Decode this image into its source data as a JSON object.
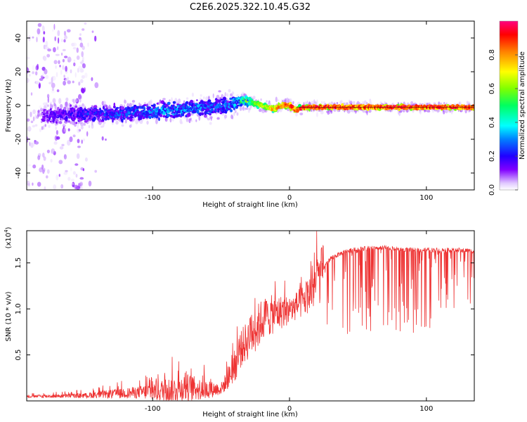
{
  "title": "C2E6.2025.322.10.45.G32",
  "chart_data": [
    {
      "type": "heatmap",
      "name": "spectrogram",
      "xlabel": "Height of straight line (km)",
      "ylabel": "Frequency (Hz)",
      "xlim": [
        -192,
        135
      ],
      "ylim": [
        -50,
        50
      ],
      "x_ticks": [
        -100,
        0,
        100
      ],
      "y_ticks": [
        -40,
        -20,
        0,
        20,
        40
      ],
      "colorbar": {
        "label": "Normalized spectral amplitude",
        "range": [
          0,
          1
        ],
        "ticks": [
          "0.0",
          "0.2",
          "0.4",
          "0.6",
          "0.8"
        ],
        "tick_values": [
          0.0,
          0.2,
          0.4,
          0.6,
          0.8
        ],
        "colormap": [
          "#ffffff",
          "#e0c8ff",
          "#8000ff",
          "#2000ff",
          "#0080ff",
          "#00ffff",
          "#00ff60",
          "#80ff00",
          "#ffff00",
          "#ff8000",
          "#ff0000",
          "#ff0080"
        ]
      },
      "ridge": {
        "description_units": "x in km, frequency in Hz, amplitude 0-1",
        "x": [
          -170,
          -150,
          -130,
          -110,
          -90,
          -70,
          -55,
          -45,
          -35,
          -28,
          -20,
          -12,
          -5,
          0,
          5,
          10,
          20,
          40,
          60,
          80,
          100,
          120,
          135
        ],
        "freq": [
          -6,
          -5,
          -5,
          -4,
          -3,
          -2,
          -1,
          0,
          3,
          2,
          0,
          -2,
          0,
          0,
          -3,
          -1,
          -1,
          -1,
          -1,
          -1,
          -1,
          -1,
          -1
        ],
        "spread": [
          4,
          4,
          4,
          4,
          4,
          4,
          4,
          4,
          3,
          2,
          1.5,
          1.5,
          1.5,
          1.5,
          1.5,
          1.2,
          1,
          1,
          1,
          1,
          1,
          1,
          1
        ],
        "halo": [
          8,
          8,
          8,
          8,
          9,
          10,
          11,
          11,
          7,
          5,
          4,
          4,
          4,
          4,
          4,
          4,
          4,
          4,
          3.5,
          3.5,
          3,
          3,
          3
        ],
        "amplitude": [
          0.2,
          0.25,
          0.28,
          0.3,
          0.35,
          0.35,
          0.3,
          0.3,
          0.45,
          0.6,
          0.7,
          0.8,
          0.85,
          0.9,
          0.9,
          0.95,
          0.95,
          0.95,
          0.95,
          0.95,
          0.95,
          0.95,
          0.95
        ]
      },
      "noise_region_km": [
        -192,
        -150
      ]
    },
    {
      "type": "line",
      "name": "snr",
      "xlabel": "Height of straight line (km)",
      "ylabel": "SNR (10 * v/v)",
      "y_multiplier": "(x10",
      "y_multiplier_exp": "4",
      "y_multiplier_close": ")",
      "xlim": [
        -192,
        135
      ],
      "ylim": [
        0,
        18500
      ],
      "x_ticks": [
        -100,
        0,
        100
      ],
      "y_ticks": [
        5000,
        10000,
        15000
      ],
      "y_tick_labels": [
        "0.5",
        "1.0",
        "1.5"
      ],
      "color": "#ee3333",
      "envelope": {
        "x": [
          -192,
          -150,
          -110,
          -90,
          -75,
          -60,
          -50,
          -45,
          -40,
          -35,
          -30,
          -25,
          -20,
          -15,
          -10,
          -5,
          0,
          5,
          10,
          15,
          20,
          25,
          30,
          40,
          50,
          60,
          70,
          80,
          90,
          100,
          110,
          120,
          135
        ],
        "base": [
          500,
          600,
          1000,
          1300,
          1600,
          1300,
          1400,
          2500,
          4000,
          6000,
          7000,
          8000,
          9000,
          9500,
          9700,
          9900,
          10000,
          10500,
          11000,
          12000,
          13200,
          14500,
          15500,
          16200,
          16500,
          16600,
          16650,
          16500,
          16400,
          16400,
          16400,
          16400,
          16300
        ],
        "amp": [
          300,
          600,
          1500,
          3000,
          3500,
          2200,
          1500,
          2500,
          4000,
          4500,
          5000,
          5500,
          5500,
          5000,
          4500,
          4000,
          3500,
          3500,
          4000,
          5000,
          6000,
          7000,
          8000,
          9000,
          9000,
          9000,
          9000,
          9000,
          9000,
          9000,
          8000,
          7000,
          7000
        ]
      }
    }
  ]
}
